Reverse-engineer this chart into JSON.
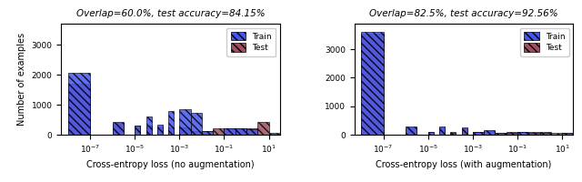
{
  "left_title": "Overlap=60.0%, test accuracy=84.15%",
  "right_title": "Overlap=82.5%, test accuracy=92.56%",
  "left_xlabel": "Cross-entropy loss (no augmentation)",
  "right_xlabel": "Cross-entropy loss (with augmentation)",
  "ylabel": "Number of examples",
  "train_color": "#4455ee",
  "test_color": "#9e5060",
  "bin_edges_log": [
    -8.0,
    -7.0,
    -6.5,
    -6.0,
    -5.5,
    -5.0,
    -4.75,
    -4.5,
    -4.25,
    -4.0,
    -3.75,
    -3.5,
    -3.25,
    -3.0,
    -2.5,
    -2.0,
    -1.5,
    -1.0,
    -0.5,
    0.0,
    0.5,
    1.0,
    1.5
  ],
  "left_train_counts": [
    2050,
    0,
    0,
    420,
    0,
    310,
    0,
    620,
    0,
    330,
    0,
    800,
    0,
    860,
    730,
    130,
    0,
    200,
    210,
    190,
    0,
    60,
    0
  ],
  "left_test_counts": [
    1700,
    0,
    0,
    390,
    0,
    290,
    0,
    290,
    0,
    270,
    0,
    250,
    0,
    250,
    130,
    130,
    210,
    200,
    220,
    220,
    420,
    40,
    0
  ],
  "right_train_counts": [
    3600,
    0,
    0,
    290,
    0,
    110,
    0,
    290,
    0,
    60,
    0,
    250,
    0,
    90,
    170,
    50,
    60,
    80,
    70,
    70,
    0,
    50,
    0
  ],
  "right_test_counts": [
    3550,
    0,
    0,
    250,
    0,
    100,
    0,
    250,
    0,
    80,
    0,
    210,
    0,
    80,
    130,
    70,
    100,
    90,
    100,
    100,
    60,
    50,
    0
  ],
  "ylim_left": [
    0,
    3700
  ],
  "ylim_right": [
    0,
    3900
  ],
  "yticks_left": [
    0,
    1000,
    2000,
    3000
  ],
  "yticks_right": [
    0,
    1000,
    2000,
    3000
  ],
  "xlim_log": [
    -8.3,
    1.5
  ]
}
